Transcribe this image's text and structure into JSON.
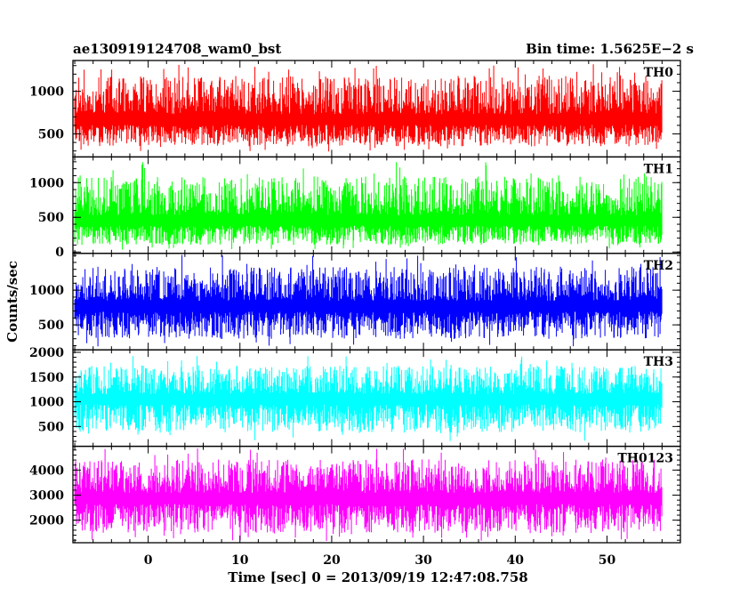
{
  "header": {
    "left_title": "ae130919124708_wam0_bst",
    "right_title": "Bin time: 1.5625E−2 s"
  },
  "chart_data": {
    "type": "line",
    "title": "ae130919124708_wam0_bst",
    "subtitle": "Bin time: 1.5625E−2 s",
    "xlabel": "Time [sec] 0 = 2013/09/19 12:47:08.758",
    "ylabel": "Counts/sec",
    "xlim": [
      -8.2,
      58
    ],
    "x_data_range": [
      -8,
      56
    ],
    "xticks": [
      0,
      10,
      20,
      30,
      40,
      50
    ],
    "xtick_labels": [
      "0",
      "10",
      "20",
      "30",
      "40",
      "50"
    ],
    "grid": false,
    "legend": "none",
    "panels": [
      {
        "name": "TH0",
        "color": "#ff0000",
        "ylim": [
          230,
          1360
        ],
        "yticks": [
          500,
          1000
        ],
        "ytick_labels": [
          "500",
          "1000"
        ],
        "mean": 650,
        "low": 280,
        "high": 1360
      },
      {
        "name": "TH1",
        "color": "#00ff00",
        "ylim": [
          -20,
          1370
        ],
        "yticks": [
          0,
          500,
          1000
        ],
        "ytick_labels": [
          "0",
          "500",
          "1000"
        ],
        "mean": 430,
        "low": 20,
        "high": 1310
      },
      {
        "name": "TH2",
        "color": "#0000ff",
        "ylim": [
          140,
          1530
        ],
        "yticks": [
          500,
          1000
        ],
        "ytick_labels": [
          "500",
          "1000"
        ],
        "mean": 760,
        "low": 180,
        "high": 1530
      },
      {
        "name": "TH3",
        "color": "#00ffff",
        "ylim": [
          100,
          2050
        ],
        "yticks": [
          500,
          1000,
          1500,
          2000
        ],
        "ytick_labels": [
          "500",
          "1000",
          "1500",
          "2000"
        ],
        "mean": 1050,
        "low": 200,
        "high": 1950
      },
      {
        "name": "TH0123",
        "color": "#ff00ff",
        "ylim": [
          1100,
          4950
        ],
        "yticks": [
          2000,
          3000,
          4000
        ],
        "ytick_labels": [
          "2000",
          "3000",
          "4000"
        ],
        "mean": 2850,
        "low": 1150,
        "high": 4950
      }
    ]
  }
}
